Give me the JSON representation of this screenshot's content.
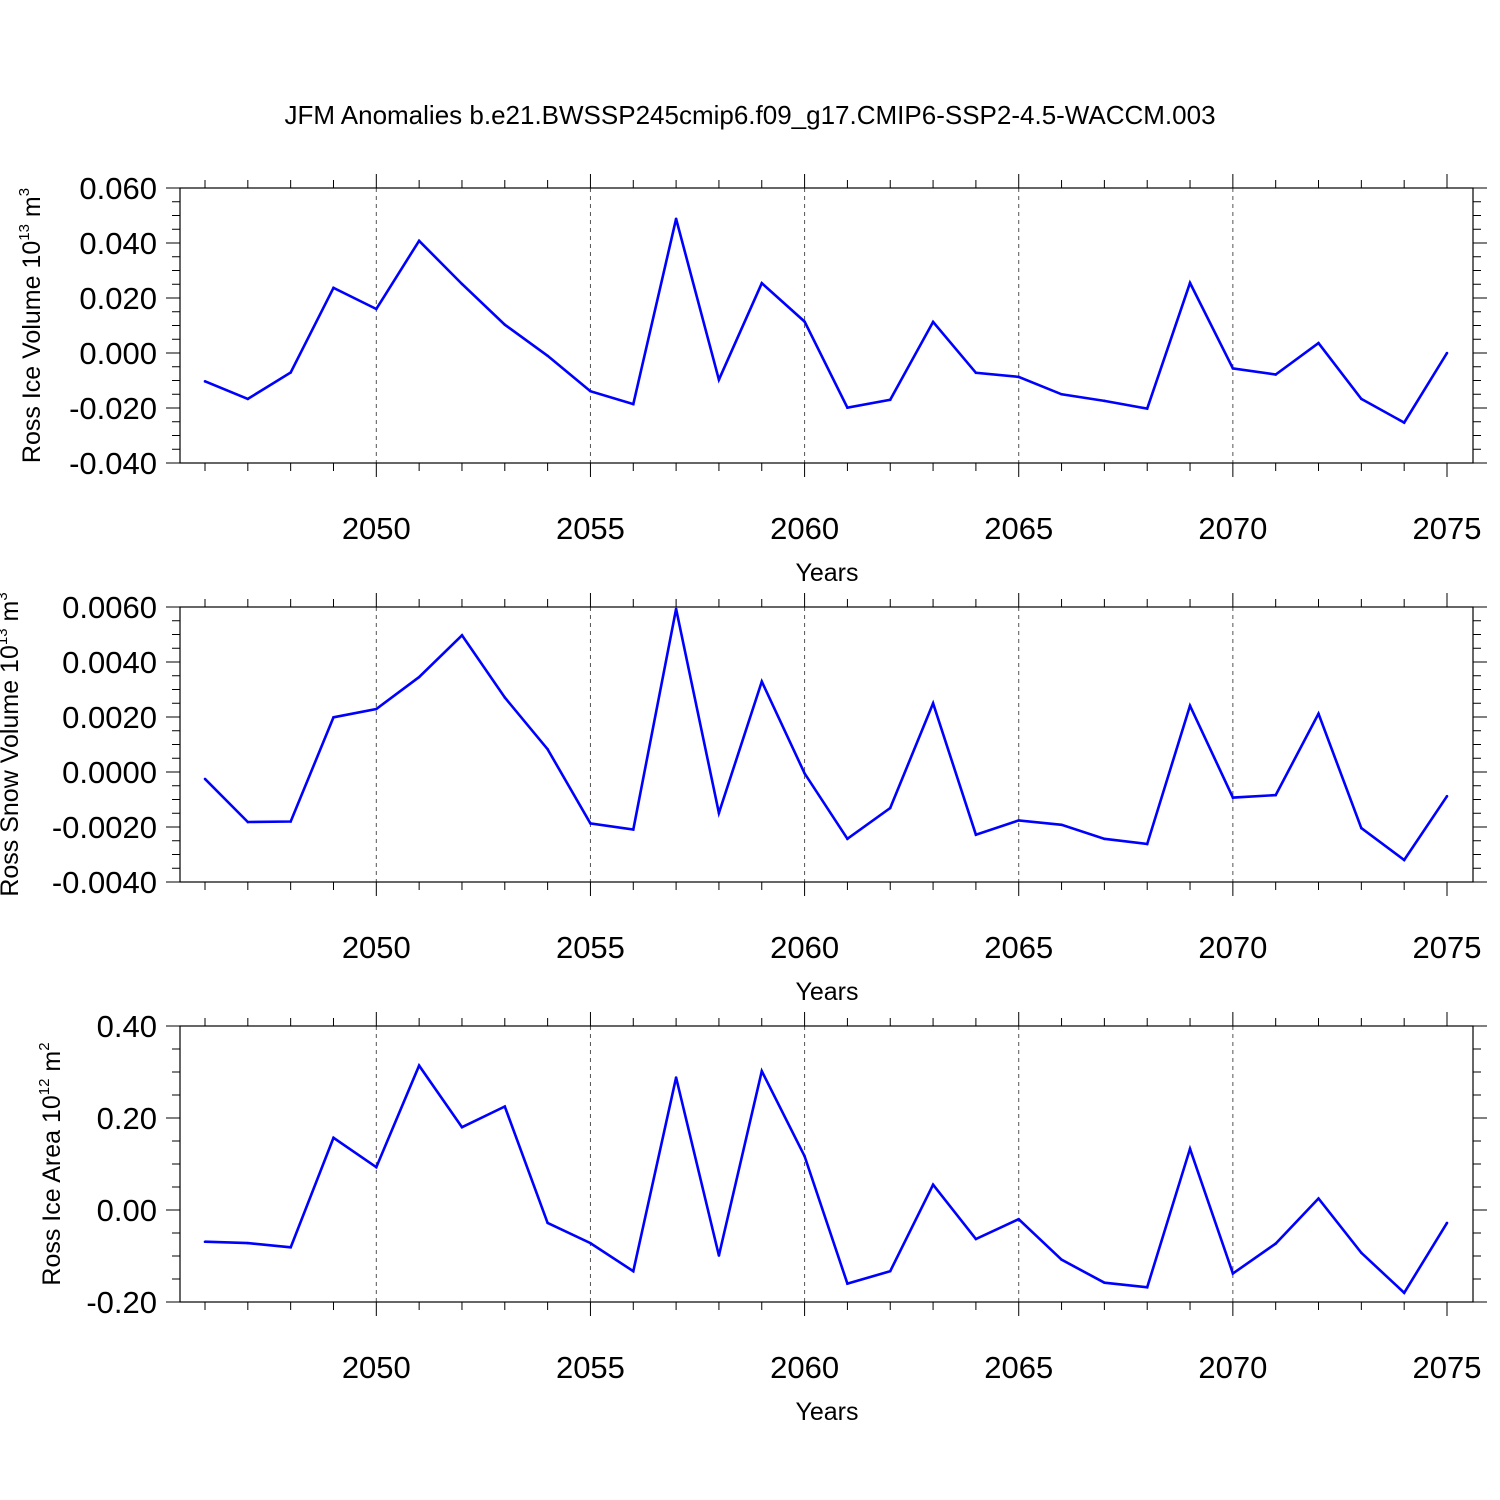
{
  "title": "JFM Anomalies b.e21.BWSSP245cmip6.f09_g17.CMIP6-SSP2-4.5-WACCM.003",
  "line_color": "#0000ff",
  "chart_data": [
    {
      "type": "line",
      "ylabel": "Ross Ice Volume 10",
      "ylabel_exp": "13",
      "ylabel_unit": " m",
      "ylabel_unit_exp": "3",
      "xlabel": "Years",
      "xlim": [
        2046,
        2075
      ],
      "ylim": [
        -0.04,
        0.06
      ],
      "x_ticks": [
        2050,
        2055,
        2060,
        2065,
        2070,
        2075
      ],
      "x_tick_labels": [
        "2050",
        "2055",
        "2060",
        "2065",
        "2070",
        "2075"
      ],
      "y_ticks": [
        -0.04,
        -0.02,
        0.0,
        0.02,
        0.04,
        0.06
      ],
      "y_tick_labels": [
        "-0.040",
        "-0.020",
        "0.000",
        "0.020",
        "0.040",
        "0.060"
      ],
      "grid": "vertical dashed",
      "x": [
        2046,
        2047,
        2048,
        2049,
        2050,
        2051,
        2052,
        2053,
        2054,
        2055,
        2056,
        2057,
        2058,
        2059,
        2060,
        2061,
        2062,
        2063,
        2064,
        2065,
        2066,
        2067,
        2068,
        2069,
        2070,
        2071,
        2072,
        2073,
        2074,
        2075
      ],
      "values": [
        -0.0103,
        -0.0167,
        -0.0071,
        0.0237,
        0.016,
        0.0408,
        0.0251,
        0.0103,
        -0.001,
        -0.0139,
        -0.0186,
        0.0488,
        -0.0097,
        0.0254,
        0.0114,
        -0.0199,
        -0.017,
        0.0113,
        -0.0072,
        -0.0087,
        -0.015,
        -0.0174,
        -0.0202,
        0.0255,
        -0.0056,
        -0.0078,
        0.0036,
        -0.0167,
        -0.0253,
        0.0
      ]
    },
    {
      "type": "line",
      "ylabel": "Ross Snow Volume 10",
      "ylabel_exp": "13",
      "ylabel_unit": " m",
      "ylabel_unit_exp": "3",
      "xlabel": "Years",
      "xlim": [
        2046,
        2075
      ],
      "ylim": [
        -0.004,
        0.006
      ],
      "x_ticks": [
        2050,
        2055,
        2060,
        2065,
        2070,
        2075
      ],
      "x_tick_labels": [
        "2050",
        "2055",
        "2060",
        "2065",
        "2070",
        "2075"
      ],
      "y_ticks": [
        -0.004,
        -0.002,
        0.0,
        0.002,
        0.004,
        0.006
      ],
      "y_tick_labels": [
        "-0.0040",
        "-0.0020",
        "0.0000",
        "0.0020",
        "0.0040",
        "0.0060"
      ],
      "grid": "vertical dashed",
      "x": [
        2046,
        2047,
        2048,
        2049,
        2050,
        2051,
        2052,
        2053,
        2054,
        2055,
        2056,
        2057,
        2058,
        2059,
        2060,
        2061,
        2062,
        2063,
        2064,
        2065,
        2066,
        2067,
        2068,
        2069,
        2070,
        2071,
        2072,
        2073,
        2074,
        2075
      ],
      "values": [
        -0.00025,
        -0.00182,
        -0.0018,
        0.00199,
        0.00229,
        0.00345,
        0.00497,
        0.00271,
        0.00083,
        -0.00187,
        -0.00209,
        0.00593,
        -0.00149,
        0.00329,
        -5e-05,
        -0.00243,
        -0.00131,
        0.0025,
        -0.00228,
        -0.00176,
        -0.00192,
        -0.00243,
        -0.00262,
        0.00241,
        -0.00093,
        -0.00084,
        0.00212,
        -0.00204,
        -0.0032,
        -0.00088
      ]
    },
    {
      "type": "line",
      "ylabel": "Ross Ice Area 10",
      "ylabel_exp": "12",
      "ylabel_unit": " m",
      "ylabel_unit_exp": "2",
      "xlabel": "Years",
      "xlim": [
        2046,
        2075
      ],
      "ylim": [
        -0.2,
        0.4
      ],
      "x_ticks": [
        2050,
        2055,
        2060,
        2065,
        2070,
        2075
      ],
      "x_tick_labels": [
        "2050",
        "2055",
        "2060",
        "2065",
        "2070",
        "2075"
      ],
      "y_ticks": [
        -0.2,
        0.0,
        0.2,
        0.4
      ],
      "y_tick_labels": [
        "-0.20",
        "0.00",
        "0.20",
        "0.40"
      ],
      "grid": "vertical dashed",
      "x": [
        2046,
        2047,
        2048,
        2049,
        2050,
        2051,
        2052,
        2053,
        2054,
        2055,
        2056,
        2057,
        2058,
        2059,
        2060,
        2061,
        2062,
        2063,
        2064,
        2065,
        2066,
        2067,
        2068,
        2069,
        2070,
        2071,
        2072,
        2073,
        2074,
        2075
      ],
      "values": [
        -0.069,
        -0.072,
        -0.081,
        0.157,
        0.093,
        0.314,
        0.18,
        0.225,
        -0.028,
        -0.072,
        -0.133,
        0.288,
        -0.099,
        0.302,
        0.117,
        -0.16,
        -0.133,
        0.055,
        -0.063,
        -0.02,
        -0.108,
        -0.158,
        -0.168,
        0.133,
        -0.138,
        -0.073,
        0.025,
        -0.093,
        -0.18,
        -0.028
      ]
    }
  ]
}
